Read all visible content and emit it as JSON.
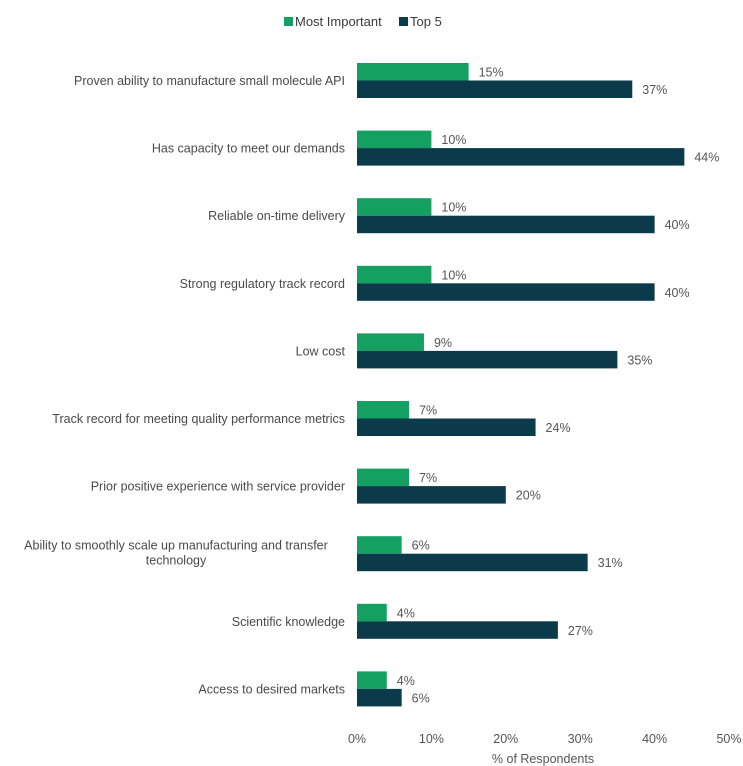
{
  "chart_data": {
    "type": "bar",
    "orientation": "horizontal",
    "title": "",
    "xlabel": "% of Respondents",
    "ylabel": "",
    "xlim": [
      0,
      50
    ],
    "x_ticks": [
      "0%",
      "10%",
      "20%",
      "30%",
      "40%",
      "50%"
    ],
    "x_tick_values": [
      0,
      10,
      20,
      30,
      40,
      50
    ],
    "grid": false,
    "legend_position": "top-center",
    "categories": [
      [
        "Proven ability to manufacture small molecule API"
      ],
      [
        "Has capacity to meet our demands"
      ],
      [
        "Reliable on-time delivery"
      ],
      [
        "Strong regulatory track record"
      ],
      [
        "Low cost"
      ],
      [
        "Track record for meeting quality performance metrics"
      ],
      [
        "Prior positive experience with service provider"
      ],
      [
        "Ability to smoothly scale up manufacturing and transfer",
        "technology"
      ],
      [
        "Scientific knowledge"
      ],
      [
        "Access to desired markets"
      ]
    ],
    "series": [
      {
        "name": "Most Important",
        "color": "#13a060",
        "values": [
          15,
          10,
          10,
          10,
          9,
          7,
          7,
          6,
          4,
          4
        ],
        "labels": [
          "15%",
          "10%",
          "10%",
          "10%",
          "9%",
          "7%",
          "7%",
          "6%",
          "4%",
          "4%"
        ]
      },
      {
        "name": "Top 5",
        "color": "#0b3a4b",
        "values": [
          37,
          44,
          40,
          40,
          35,
          24,
          20,
          31,
          27,
          6
        ],
        "labels": [
          "37%",
          "44%",
          "40%",
          "40%",
          "35%",
          "24%",
          "20%",
          "31%",
          "27%",
          "6%"
        ]
      }
    ]
  }
}
